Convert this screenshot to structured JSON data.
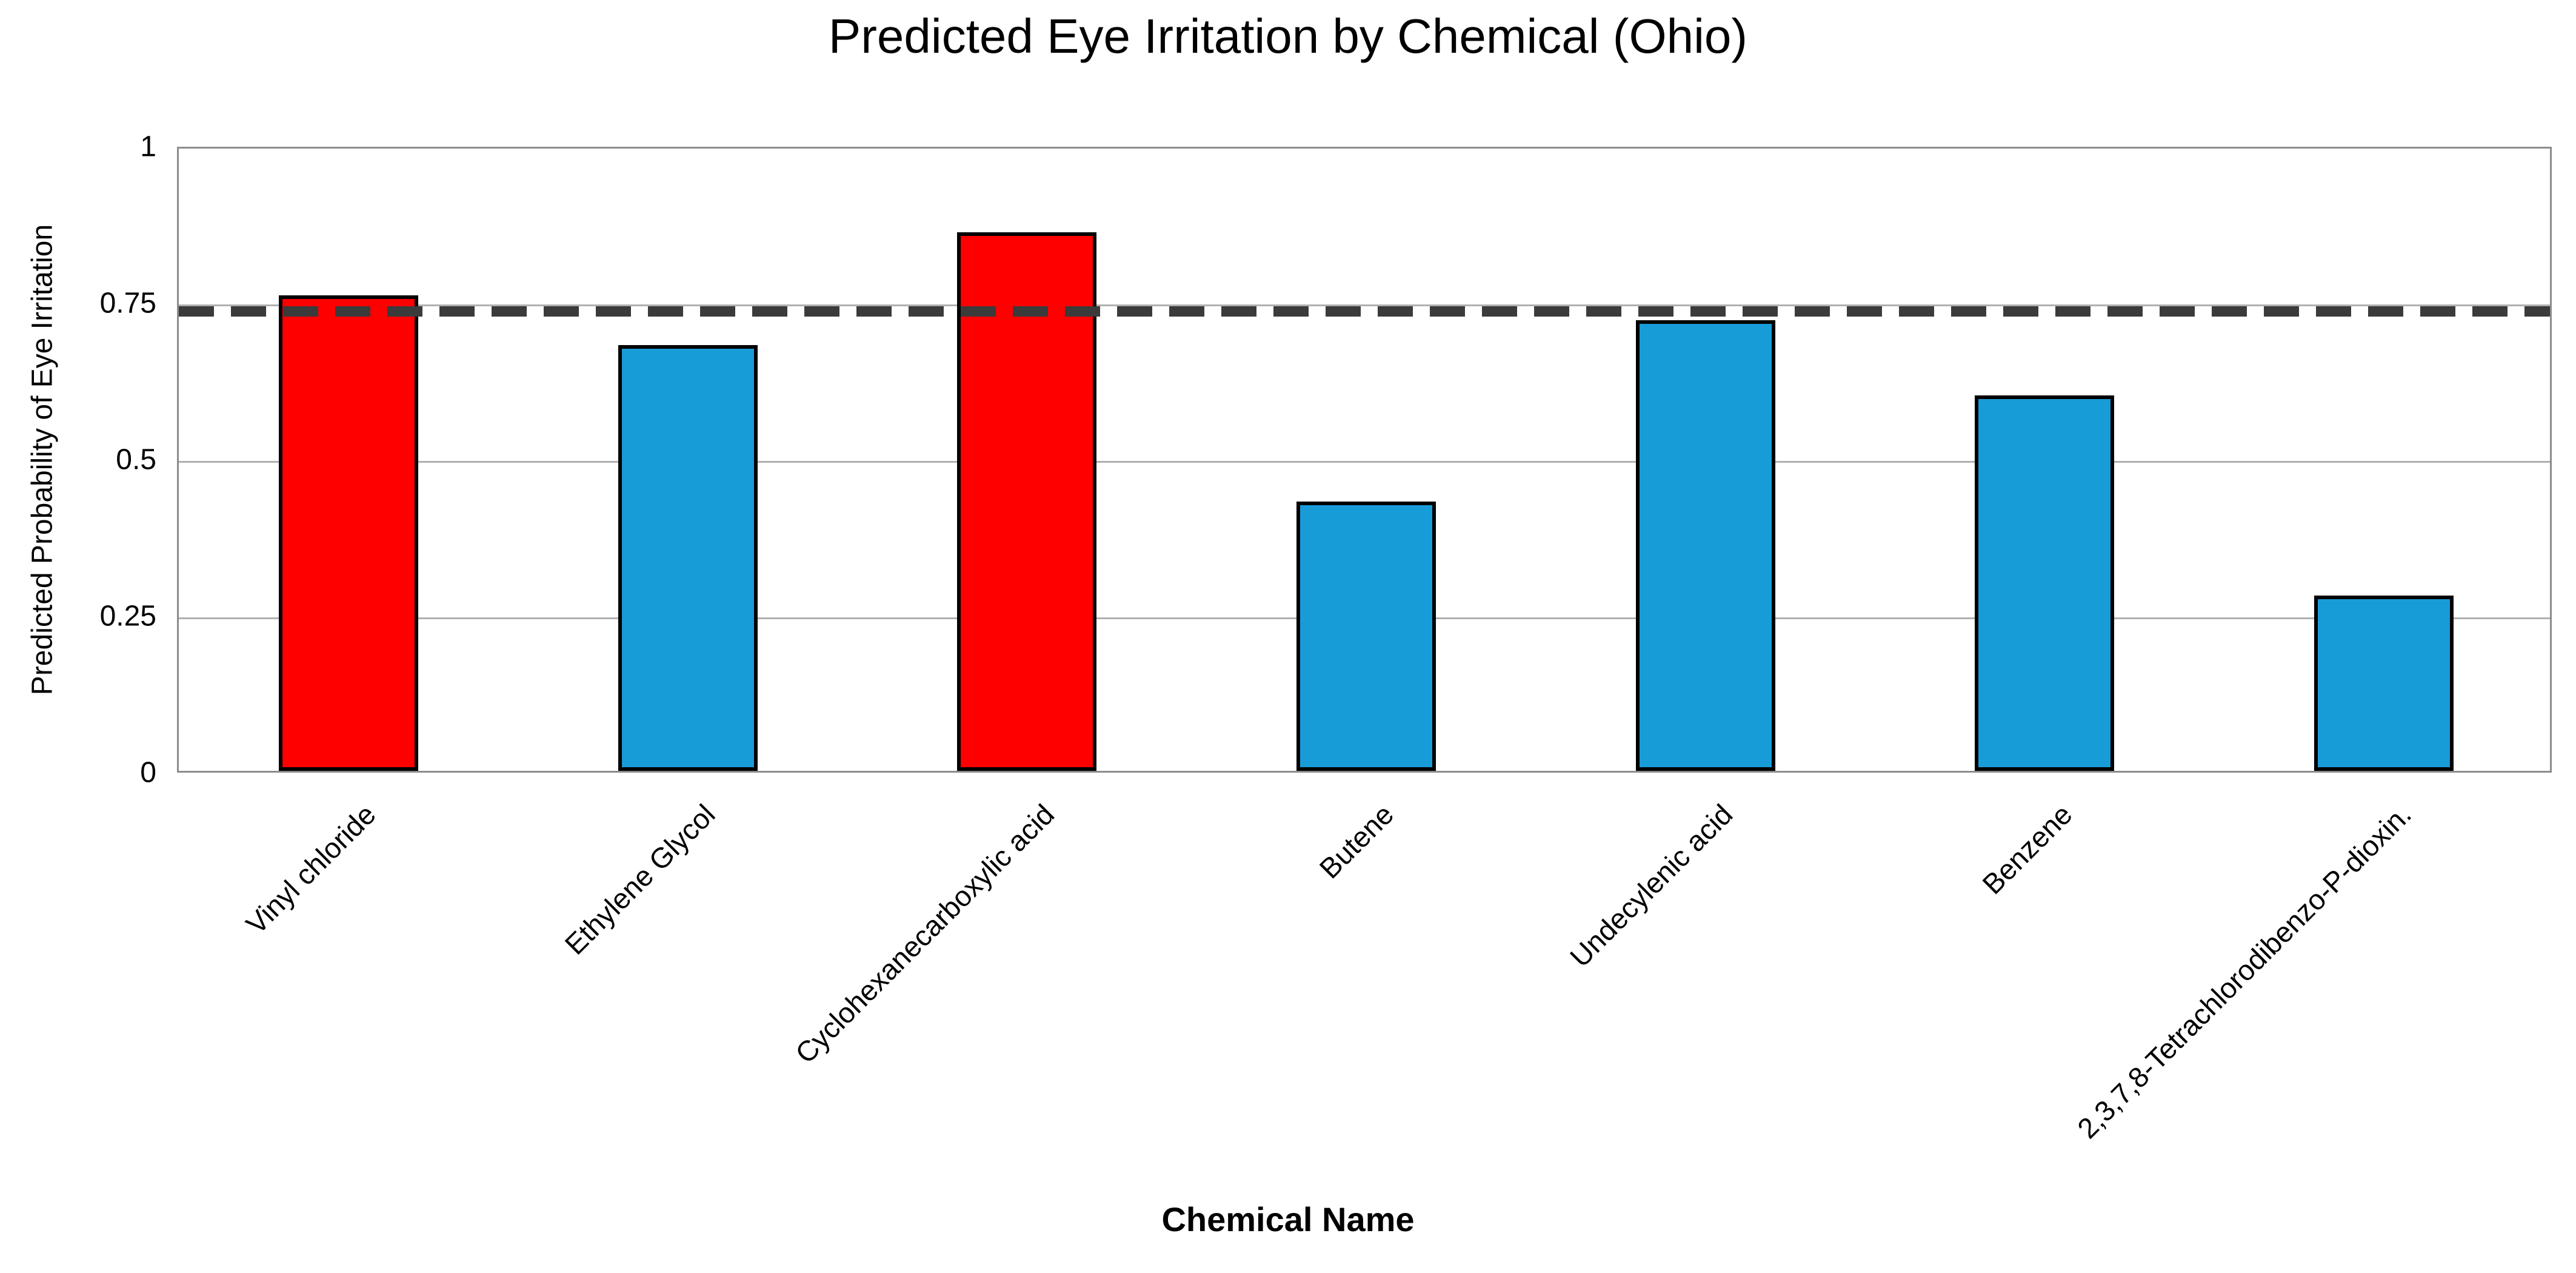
{
  "chart_data": {
    "type": "bar",
    "title": "Predicted Eye Irritation by Chemical (Ohio)",
    "xlabel": "Chemical Name",
    "ylabel": "Predicted Probability of Eye Irritation",
    "categories": [
      "Vinyl chloride",
      "Ethylene Glycol",
      "Cyclohexanecarboxylic acid",
      "Butene",
      "Undecylenic acid",
      "Benzene",
      "2,3,7,8-Tetrachlorodibenzo-P-dioxin."
    ],
    "values": [
      0.76,
      0.68,
      0.86,
      0.43,
      0.72,
      0.6,
      0.28
    ],
    "bar_colors": [
      "#FF0000",
      "#189CD8",
      "#FF0000",
      "#189CD8",
      "#189CD8",
      "#189CD8",
      "#189CD8"
    ],
    "threshold": 0.74,
    "ylim": [
      0,
      1
    ],
    "ytick_values": [
      0,
      0.25,
      0.5,
      0.75,
      1
    ],
    "ytick_labels": [
      "0",
      "0.25",
      "0.5",
      "0.75",
      "1"
    ],
    "grid": true,
    "legend": false,
    "colors": {
      "bar_above_threshold": "#FF0000",
      "bar_below_threshold": "#189CD8",
      "bar_border": "#000000",
      "threshold_line": "#3b3b3b",
      "gridline": "#b0b0b0",
      "frame": "#8c8c8c",
      "text": "#000000",
      "background": "#ffffff"
    }
  }
}
